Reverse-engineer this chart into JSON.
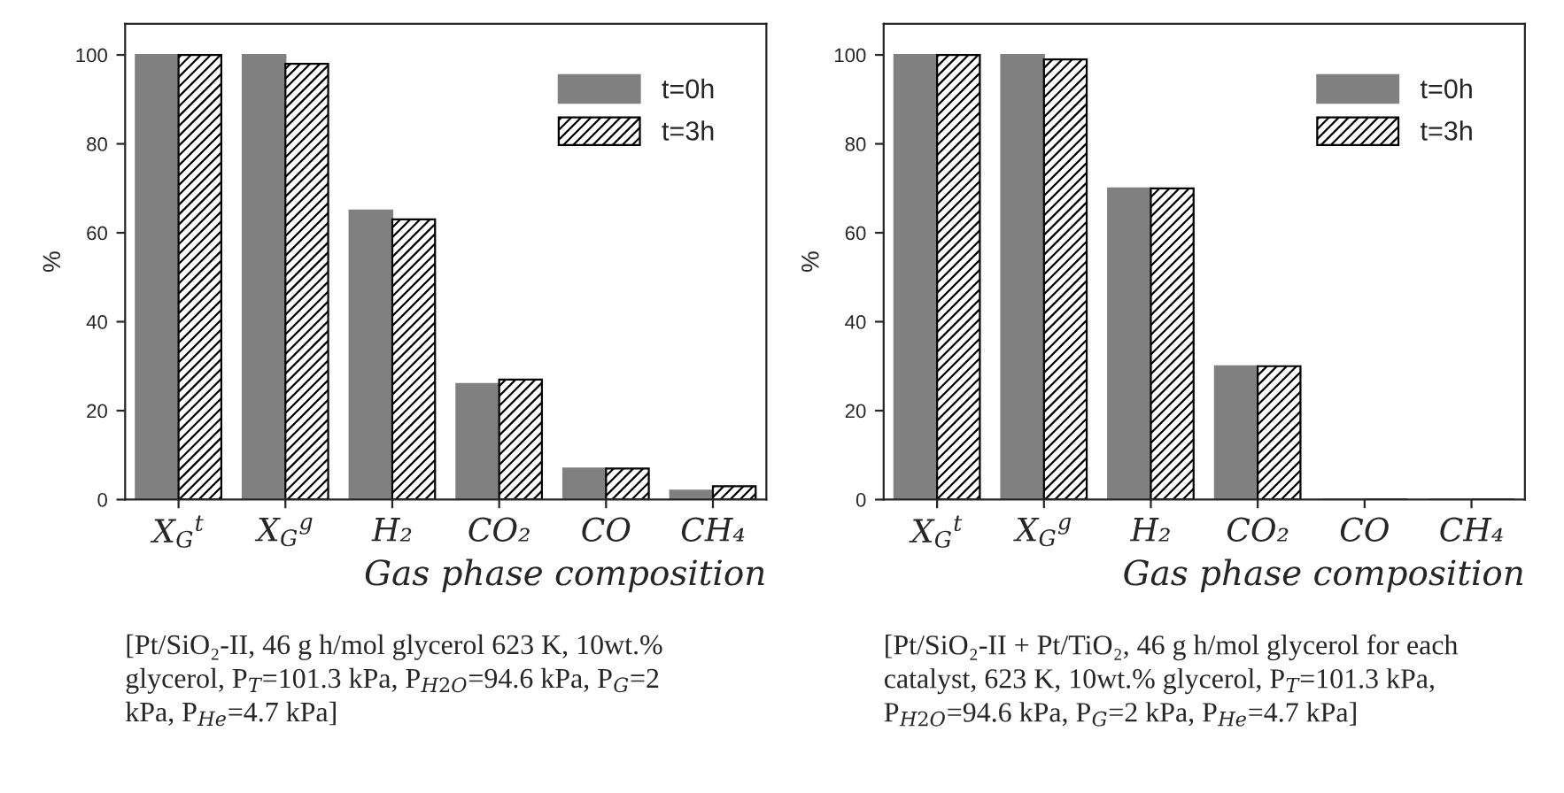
{
  "chart_data": [
    {
      "type": "bar",
      "ylabel": "%",
      "xlabel": "Gas phase composition",
      "categories": [
        "X$_{G}$$^{t}$",
        "X$_{G}$$^{g}$",
        "H₂",
        "CO₂",
        "CO",
        "CH₄"
      ],
      "series": [
        {
          "name": "t=0h",
          "color": "#808080",
          "values": [
            100,
            100,
            65,
            26,
            7,
            2
          ]
        },
        {
          "name": "t=3h",
          "color": "#000000",
          "values": [
            100,
            98,
            63,
            27,
            7,
            3
          ]
        }
      ],
      "ylim": [
        0,
        107
      ],
      "yticks": [
        0,
        20,
        40,
        60,
        80,
        100
      ],
      "legend": "top right",
      "annotations": [
        "[Pt/SiO₂-II, 46 g h/mol glycerol 623 K, 10wt.%\nglycerol, P$_{T}$=101.3 kPa, P$_{H2O}$=94.6 kPa, P$_{G}$=2\nkPa, P$_{He}$=4.7 kPa]"
      ]
    },
    {
      "type": "bar",
      "ylabel": "%",
      "xlabel": "Gas phase composition",
      "categories": [
        "X$_{G}$$^{t}$",
        "X$_{G}$$^{g}$",
        "H₂",
        "CO₂",
        "CO",
        "CH₄"
      ],
      "series": [
        {
          "name": "t=0h",
          "color": "#808080",
          "values": [
            100,
            100,
            70,
            30,
            0,
            0
          ]
        },
        {
          "name": "t=3h",
          "color": "#000000",
          "values": [
            100,
            99,
            70,
            30,
            0,
            0
          ]
        }
      ],
      "ylim": [
        0,
        107
      ],
      "yticks": [
        0,
        20,
        40,
        60,
        80,
        100
      ],
      "legend": "top right",
      "annotations": [
        "[Pt/SiO₂-II + Pt/TiO₂, 46 g h/mol glycerol for each\ncatalyst, 623 K, 10wt.% glycerol, P$_{T}$=101.3 kPa,\nP$_{H2O}$=94.6 kPa, P$_{G}$=2 kPa, P$_{He}$=4.7 kPa]"
      ]
    }
  ]
}
